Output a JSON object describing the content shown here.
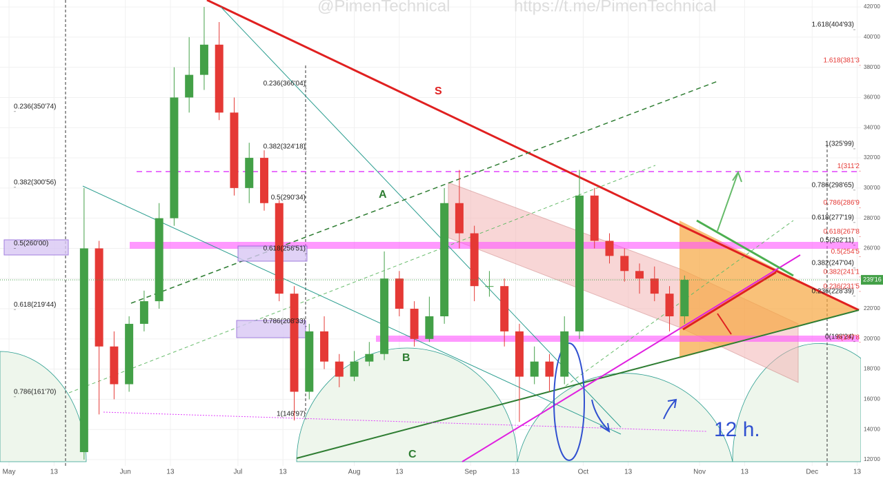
{
  "chart_data": {
    "type": "candlestick",
    "watermarks": [
      "@PimenTechnical",
      "https://t.me/PimenTechnical"
    ],
    "x": [
      20,
      24,
      28,
      32,
      36,
      40,
      44,
      48,
      52,
      56,
      60,
      64,
      68,
      72,
      76,
      80,
      84,
      88,
      92,
      96,
      100,
      104,
      108,
      112,
      116,
      120,
      124,
      128,
      132,
      136,
      140,
      144,
      148,
      152,
      156,
      160,
      164,
      168,
      172,
      176,
      180
    ],
    "open": [
      125,
      260,
      195,
      170,
      210,
      225,
      280,
      360,
      375,
      395,
      350,
      300,
      320,
      290,
      230,
      165,
      205,
      185,
      175,
      185,
      190,
      240,
      220,
      200,
      215,
      290,
      270,
      235,
      235,
      205,
      175,
      185,
      175,
      205,
      295,
      265,
      255,
      245,
      240,
      230,
      215
    ],
    "high": [
      300,
      265,
      205,
      215,
      232,
      290,
      380,
      400,
      420,
      410,
      360,
      330,
      325,
      292,
      235,
      210,
      215,
      190,
      192,
      198,
      258,
      245,
      225,
      228,
      300,
      312,
      275,
      245,
      240,
      210,
      195,
      190,
      215,
      312,
      300,
      270,
      260,
      250,
      248,
      235,
      242
    ],
    "low": [
      120,
      150,
      160,
      165,
      205,
      220,
      275,
      350,
      365,
      345,
      295,
      290,
      285,
      225,
      146,
      160,
      180,
      168,
      172,
      182,
      186,
      215,
      195,
      198,
      210,
      260,
      225,
      228,
      195,
      145,
      170,
      165,
      170,
      200,
      260,
      250,
      238,
      230,
      225,
      205,
      210
    ],
    "close": [
      260,
      195,
      170,
      210,
      225,
      280,
      360,
      375,
      395,
      350,
      300,
      320,
      290,
      230,
      165,
      205,
      185,
      175,
      185,
      190,
      240,
      220,
      200,
      215,
      290,
      270,
      235,
      235,
      205,
      175,
      185,
      175,
      205,
      295,
      265,
      255,
      245,
      240,
      230,
      215,
      239.16
    ],
    "up_color": "#43a047",
    "down_color": "#e53935",
    "last_price": {
      "value": 239.16,
      "label": "239'16"
    },
    "xlim": [
      -2.4,
      227
    ],
    "xticks": [
      {
        "value": 0,
        "label": "May"
      },
      {
        "value": 12,
        "label": "13"
      },
      {
        "value": 31,
        "label": "Jun"
      },
      {
        "value": 43,
        "label": "13"
      },
      {
        "value": 61,
        "label": "Jul"
      },
      {
        "value": 73,
        "label": "13"
      },
      {
        "value": 92,
        "label": "Aug"
      },
      {
        "value": 104,
        "label": "13"
      },
      {
        "value": 123,
        "label": "Sep"
      },
      {
        "value": 135,
        "label": "13"
      },
      {
        "value": 153,
        "label": "Oct"
      },
      {
        "value": 165,
        "label": "13"
      },
      {
        "value": 184,
        "label": "Nov"
      },
      {
        "value": 196,
        "label": "13"
      },
      {
        "value": 214,
        "label": "Dec"
      },
      {
        "value": 226,
        "label": "13"
      }
    ],
    "ylim": [
      115.9,
      424.6
    ],
    "yticks": [
      {
        "value": 120,
        "label": "120'00"
      },
      {
        "value": 140,
        "label": "140'00"
      },
      {
        "value": 160,
        "label": "160'00"
      },
      {
        "value": 180,
        "label": "180'00"
      },
      {
        "value": 200,
        "label": "200'00"
      },
      {
        "value": 220,
        "label": "220'00"
      },
      {
        "value": 240,
        "label": "240'00"
      },
      {
        "value": 260,
        "label": "260'00"
      },
      {
        "value": 280,
        "label": "280'00"
      },
      {
        "value": 300,
        "label": "300'00"
      },
      {
        "value": 320,
        "label": "320'00"
      },
      {
        "value": 340,
        "label": "340'00"
      },
      {
        "value": 360,
        "label": "360'00"
      },
      {
        "value": 380,
        "label": "380'00"
      },
      {
        "value": 400,
        "label": "400'00"
      },
      {
        "value": 420,
        "label": "420'00"
      }
    ],
    "fib_left": [
      {
        "value": 350.74,
        "label": "0.236(350'74)"
      },
      {
        "value": 300.56,
        "label": "0.382(300'56)"
      },
      {
        "value": 260,
        "label": "0.5(260'00)"
      },
      {
        "value": 219.44,
        "label": "0.618(219'44)"
      },
      {
        "value": 161.7,
        "label": "0.786(161'70)"
      }
    ],
    "fib_mid": [
      {
        "value": 366.04,
        "label": "0.236(366'04)"
      },
      {
        "value": 324.18,
        "label": "0.382(324'18)"
      },
      {
        "value": 290.34,
        "label": "0.5(290'34)"
      },
      {
        "value": 256.51,
        "label": "0.618(256'51)"
      },
      {
        "value": 208.33,
        "label": "0.786(208'33)"
      },
      {
        "value": 146.97,
        "label": "1(146'97)"
      }
    ],
    "fib_right": [
      {
        "value": 404.93,
        "label": "1.618(404'93)"
      },
      {
        "value": 325.99,
        "label": "1(325'99)"
      },
      {
        "value": 298.65,
        "label": "0.786(298'65)"
      },
      {
        "value": 277.19,
        "label": "0.618(277'19)"
      },
      {
        "value": 262.11,
        "label": "0.5(262'11)"
      },
      {
        "value": 247.04,
        "label": "0.382(247'04)"
      },
      {
        "value": 228.39,
        "label": "0.236(228'39)"
      },
      {
        "value": 198.24,
        "label": "0(198'24)"
      }
    ],
    "fib_right_red": [
      {
        "value": 381.3,
        "label": "1.618(381'3"
      },
      {
        "value": 311.2,
        "label": "1(311'2"
      },
      {
        "value": 286.9,
        "label": "0.786(286'9"
      },
      {
        "value": 267.8,
        "label": "0.618(267'8"
      },
      {
        "value": 254.5,
        "label": "0.5(254'5"
      },
      {
        "value": 241.1,
        "label": "0.382(241'1"
      },
      {
        "value": 231.5,
        "label": "0.236(231'5"
      },
      {
        "value": 197.8,
        "label": "0(197'8"
      }
    ],
    "annotations": [
      "S",
      "A",
      "B",
      "C",
      "12 h."
    ]
  }
}
